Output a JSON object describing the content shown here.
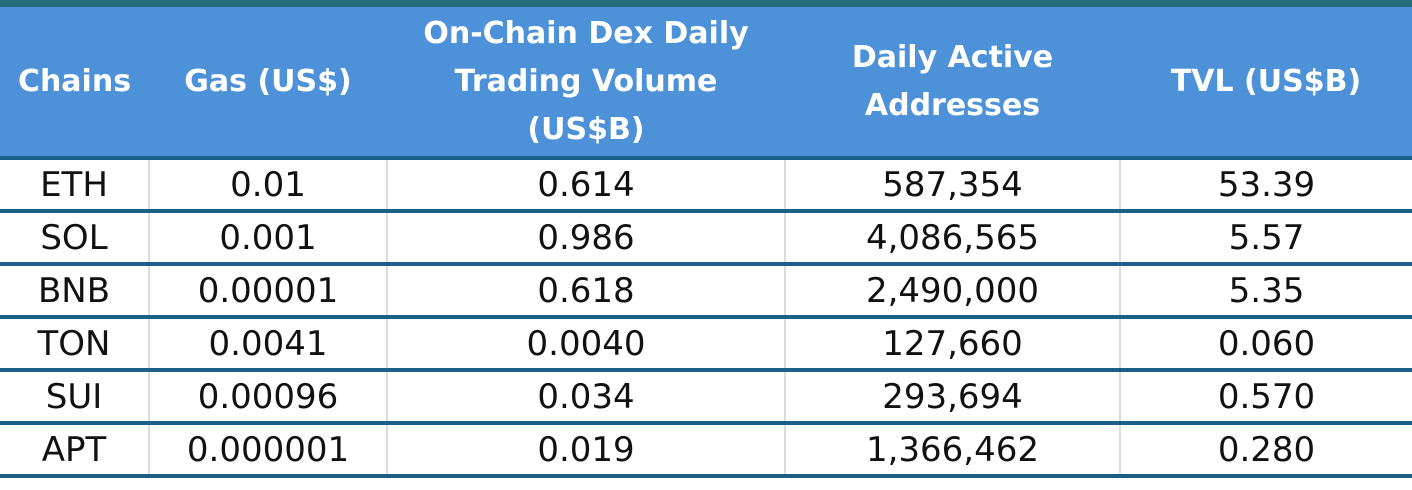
{
  "chart_data": {
    "type": "table",
    "columns": [
      "Chains",
      "Gas (US$)",
      "On-Chain Dex Daily Trading Volume (US$B)",
      "Daily Active Addresses",
      "TVL (US$B)"
    ],
    "rows": [
      [
        "ETH",
        "0.01",
        "0.614",
        "587,354",
        "53.39"
      ],
      [
        "SOL",
        "0.001",
        "0.986",
        "4,086,565",
        "5.57"
      ],
      [
        "BNB",
        "0.00001",
        "0.618",
        "2,490,000",
        "5.35"
      ],
      [
        "TON",
        "0.0041",
        "0.0040",
        "127,660",
        "0.060"
      ],
      [
        "SUI",
        "0.00096",
        "0.034",
        "293,694",
        "0.570"
      ],
      [
        "APT",
        "0.000001",
        "0.019",
        "1,366,462",
        "0.280"
      ]
    ],
    "layout": {
      "legend": "none",
      "grid": "horizontal rules between rows, light vertical separators between columns",
      "header_position": "top"
    }
  },
  "colors": {
    "header_bg": "#4d91d8",
    "header_text": "#ffffff",
    "top_border": "#256d7c",
    "row_line": "#1b5f85",
    "column_line": "#dcdcdc",
    "body_text": "#111111"
  }
}
